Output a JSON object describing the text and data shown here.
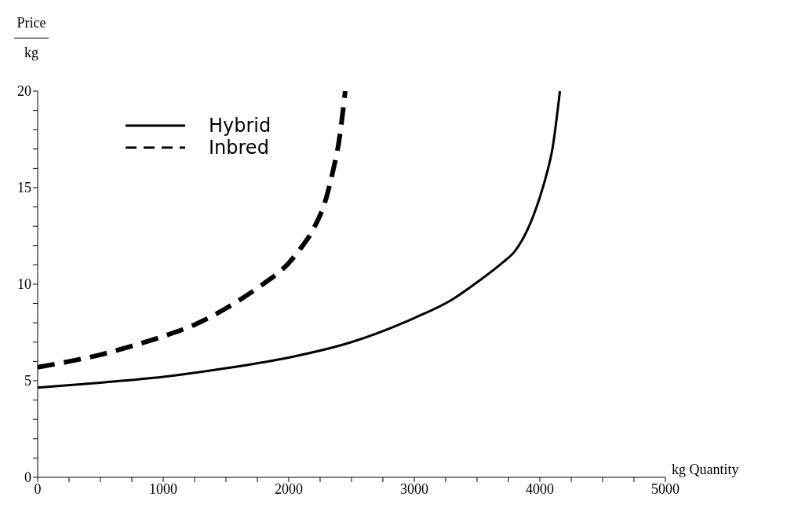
{
  "chart_data": {
    "type": "line",
    "ylabel": "Price kg",
    "xlabel": "kg Quantity",
    "xlim": [
      0,
      5000
    ],
    "xticks": [
      0,
      {
        "value": 250,
        "label": null
      },
      {
        "value": 500,
        "label": null
      },
      {
        "value": 750,
        "label": null
      },
      1000,
      {
        "value": 1250,
        "label": null
      },
      {
        "value": 1500,
        "label": null
      },
      {
        "value": 1750,
        "label": null
      },
      2000,
      {
        "value": 2250,
        "label": null
      },
      {
        "value": 2500,
        "label": null
      },
      {
        "value": 2750,
        "label": null
      },
      3000,
      {
        "value": 3250,
        "label": null
      },
      {
        "value": 3500,
        "label": null
      },
      {
        "value": 3750,
        "label": null
      },
      4000,
      {
        "value": 4250,
        "label": null
      },
      {
        "value": 4500,
        "label": null
      },
      {
        "value": 4750,
        "label": null
      },
      5000
    ],
    "ylim": [
      0,
      20
    ],
    "yticks": [
      0,
      {
        "value": 1,
        "label": null
      },
      {
        "value": 2,
        "label": null
      },
      {
        "value": 3,
        "label": null
      },
      {
        "value": 4,
        "label": null
      },
      5,
      {
        "value": 6,
        "label": null
      },
      {
        "value": 7,
        "label": null
      },
      {
        "value": 8,
        "label": null
      },
      {
        "value": 9,
        "label": null
      },
      10,
      {
        "value": 11,
        "label": null
      },
      {
        "value": 12,
        "label": null
      },
      {
        "value": 13,
        "label": null
      },
      {
        "value": 14,
        "label": null
      },
      15,
      {
        "value": 16,
        "label": null
      },
      {
        "value": 17,
        "label": null
      },
      {
        "value": 18,
        "label": null
      },
      {
        "value": 19,
        "label": null
      },
      20
    ],
    "legend": "top left",
    "marker": "none",
    "series": [
      {
        "name": "Hybrid",
        "color": "#000000",
        "line_style": "solid",
        "x": [
          0,
          500,
          1000,
          1500,
          2000,
          2500,
          3000,
          3300,
          3500,
          3700,
          3800,
          3900,
          4000,
          4050,
          4100,
          4160
        ],
        "values": [
          4.65,
          4.9,
          5.2,
          5.65,
          6.2,
          7.0,
          8.25,
          9.2,
          10.1,
          11.1,
          11.7,
          12.8,
          14.5,
          15.6,
          17.0,
          20.0
        ]
      },
      {
        "name": "Inbred",
        "color": "#000000",
        "line_style": "dashed",
        "x": [
          0,
          250,
          500,
          750,
          1000,
          1250,
          1500,
          1750,
          2000,
          2100,
          2200,
          2300,
          2350,
          2400,
          2450
        ],
        "values": [
          5.7,
          6.0,
          6.35,
          6.8,
          7.3,
          7.9,
          8.75,
          9.8,
          11.1,
          11.9,
          12.9,
          14.5,
          15.8,
          17.4,
          20.0
        ]
      }
    ]
  }
}
